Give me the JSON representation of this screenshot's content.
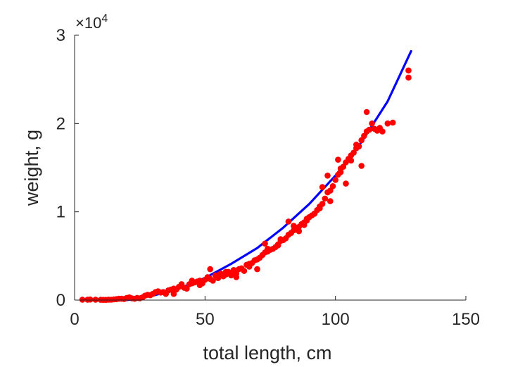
{
  "chart_data": {
    "type": "scatter",
    "title": "",
    "xlabel": "total length, cm",
    "ylabel": "weight, g",
    "xlim": [
      0,
      150
    ],
    "ylim": [
      0,
      30000
    ],
    "x_ticks": [
      0,
      50,
      100,
      150
    ],
    "x_tick_labels": [
      "0",
      "50",
      "100",
      "150"
    ],
    "y_ticks": [
      0,
      10000,
      20000,
      30000
    ],
    "y_tick_labels": [
      "0",
      "1",
      "2",
      "3"
    ],
    "y_exponent_prefix": "×10",
    "y_exponent_power": "4",
    "grid": false,
    "legend": "none",
    "colors": {
      "points": "#ff0000",
      "fit": "#0000ff",
      "axis": "#262626"
    },
    "series": [
      {
        "kind": "scatter",
        "x": [
          3,
          5,
          6,
          8,
          10,
          11,
          12,
          13,
          14,
          15,
          16,
          17,
          18,
          19,
          20,
          21,
          22,
          23,
          24,
          25,
          26,
          27,
          28,
          29,
          30,
          31,
          32,
          33,
          34,
          35,
          36,
          37,
          38,
          39,
          40,
          41,
          42,
          43,
          44,
          45,
          46,
          47,
          48,
          49,
          50,
          51,
          52,
          53,
          54,
          55,
          56,
          57,
          58,
          59,
          60,
          61,
          62,
          63,
          64,
          65,
          66,
          67,
          68,
          69,
          70,
          71,
          72,
          73,
          74,
          75,
          76,
          77,
          78,
          79,
          80,
          81,
          82,
          83,
          84,
          85,
          86,
          87,
          88,
          89,
          90,
          91,
          92,
          93,
          94,
          95,
          96,
          97,
          98,
          99,
          100,
          101,
          102,
          103,
          104,
          105,
          106,
          107,
          108,
          109,
          110,
          111,
          112,
          113,
          114,
          115,
          116,
          117,
          118,
          120,
          122,
          128,
          128,
          38,
          45,
          52,
          58,
          62,
          66,
          70,
          74,
          78,
          82,
          86,
          88,
          92,
          95,
          98,
          102,
          106,
          110,
          34,
          41,
          48,
          55,
          61,
          67,
          73,
          79,
          84,
          89,
          94,
          97,
          101,
          104,
          108,
          112
        ],
        "y": [
          50,
          50,
          60,
          50,
          30,
          20,
          20,
          50,
          40,
          80,
          100,
          150,
          150,
          120,
          250,
          300,
          200,
          150,
          250,
          200,
          300,
          500,
          600,
          550,
          700,
          900,
          1000,
          850,
          900,
          700,
          1100,
          1200,
          1300,
          1200,
          1500,
          1600,
          1400,
          1300,
          1800,
          1900,
          2000,
          2100,
          2200,
          1900,
          2300,
          2600,
          2400,
          2200,
          2800,
          2500,
          3000,
          2700,
          2900,
          3200,
          2800,
          3400,
          3000,
          3500,
          3600,
          3300,
          4000,
          3800,
          4200,
          4500,
          4600,
          4800,
          5100,
          5400,
          5500,
          5700,
          5800,
          6000,
          6300,
          6700,
          6800,
          7000,
          7400,
          7600,
          7900,
          8100,
          8300,
          8600,
          8800,
          9000,
          9400,
          9600,
          9800,
          10200,
          10400,
          10900,
          11500,
          12200,
          12400,
          12900,
          13600,
          14200,
          14900,
          15100,
          15600,
          16000,
          16400,
          16700,
          17600,
          17400,
          18100,
          18600,
          19100,
          19300,
          20000,
          19400,
          19200,
          19500,
          19100,
          20000,
          20100,
          25200,
          26000,
          700,
          2200,
          3500,
          3200,
          2600,
          4000,
          3500,
          5800,
          6200,
          8900,
          7800,
          8500,
          9800,
          12800,
          11200,
          14500,
          15800,
          15200,
          900,
          1800,
          1700,
          2800,
          3400,
          4100,
          6400,
          6900,
          8400,
          9200,
          10600,
          14100,
          15900,
          13200,
          17200,
          21300
        ]
      },
      {
        "kind": "line",
        "x": [
          3,
          10,
          20,
          30,
          40,
          50,
          60,
          70,
          80,
          90,
          100,
          110,
          120,
          129
        ],
        "y": [
          0,
          0,
          0,
          500,
          1300,
          2500,
          4100,
          5900,
          8200,
          10900,
          14100,
          17900,
          22500,
          28200
        ]
      }
    ]
  }
}
